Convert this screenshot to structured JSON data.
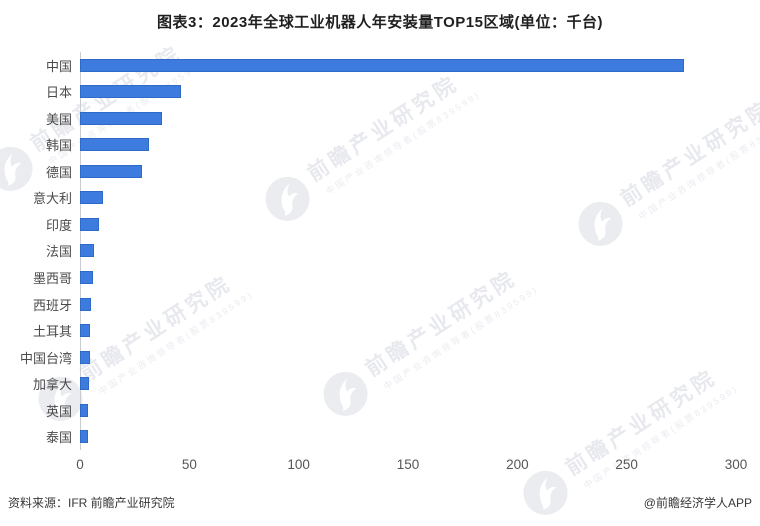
{
  "title": "图表3：2023年全球工业机器人年安装量TOP15区域(单位：千台)",
  "chart_data": {
    "type": "bar",
    "orientation": "horizontal",
    "title": "图表3：2023年全球工业机器人年安装量TOP15区域(单位：千台)",
    "unit": "千台",
    "categories": [
      "中国",
      "日本",
      "美国",
      "韩国",
      "德国",
      "意大利",
      "印度",
      "法国",
      "墨西哥",
      "西班牙",
      "土耳其",
      "中国台湾",
      "加拿大",
      "英国",
      "泰国"
    ],
    "values": [
      276.3,
      46.1,
      37.6,
      31.4,
      28.4,
      10.4,
      8.5,
      6.4,
      5.8,
      5.1,
      4.7,
      4.6,
      4.3,
      3.8,
      3.7
    ],
    "xlabel": "",
    "ylabel": "",
    "xlim": [
      0,
      300
    ],
    "xticks": [
      0,
      50,
      100,
      150,
      200,
      250,
      300
    ],
    "grid": false,
    "legend": null,
    "bar_color": "#3d7cde",
    "bar_border_color": "#2f6bc6"
  },
  "footer": {
    "source": "资料来源：IFR 前瞻产业研究院",
    "credit": "@前瞻经济学人APP"
  },
  "watermark": {
    "text": "前瞻产业研究院",
    "subtext": "中国产业咨询领导者(股票839599)"
  }
}
